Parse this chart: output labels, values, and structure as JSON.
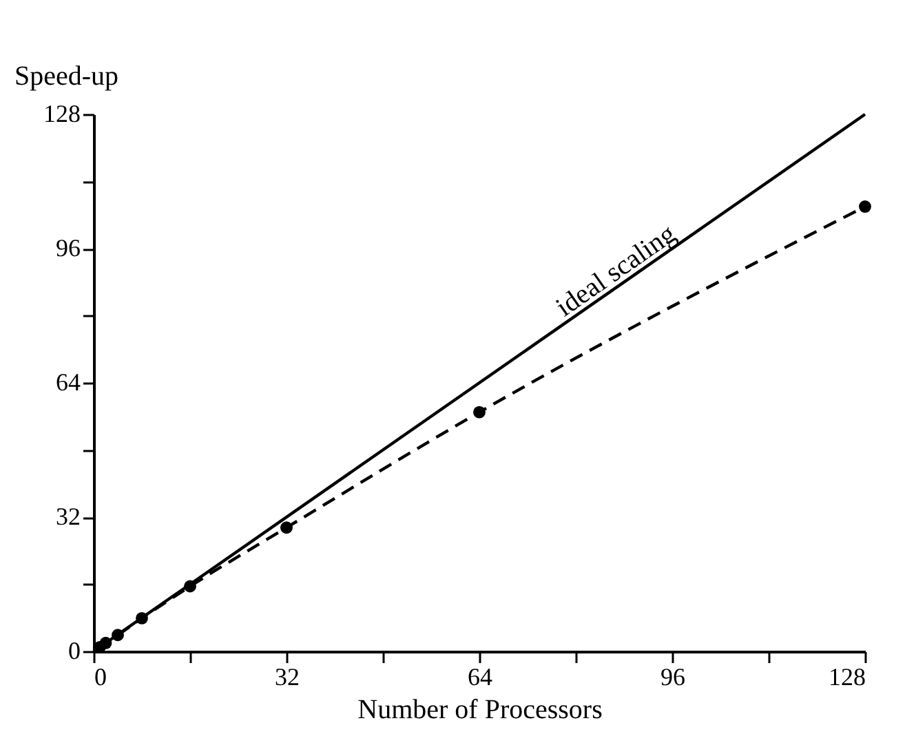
{
  "chart_data": {
    "type": "line",
    "xlabel": "Number of Processors",
    "ylabel": "Speed-up",
    "xlim": [
      0,
      128
    ],
    "ylim": [
      0,
      128
    ],
    "xticks": [
      0,
      {
        "value": 16,
        "label": null
      },
      32,
      {
        "value": 48,
        "label": null
      },
      64,
      {
        "value": 80,
        "label": null
      },
      96,
      {
        "value": 112,
        "label": null
      },
      128
    ],
    "yticks": [
      0,
      {
        "value": 16,
        "label": null
      },
      32,
      {
        "value": 48,
        "label": null
      },
      64,
      {
        "value": 80,
        "label": null
      },
      96,
      {
        "value": 112,
        "label": null
      },
      128
    ],
    "grid": false,
    "legend": false,
    "marker": "none",
    "line_style": "solid",
    "annotations": [
      {
        "text": "ideal scaling",
        "x": 88,
        "y": 88
      }
    ],
    "series": [
      {
        "color": "#000000",
        "x": [
          0,
          128
        ],
        "values": [
          0,
          128
        ]
      },
      {
        "color": "#000000",
        "x": [
          1,
          2,
          4,
          8,
          16,
          32,
          64,
          128
        ],
        "values": [
          1,
          2,
          3.9,
          7.9,
          15.5,
          29.5,
          57,
          106
        ],
        "marker": "circle",
        "line_style": "dashed"
      }
    ]
  }
}
